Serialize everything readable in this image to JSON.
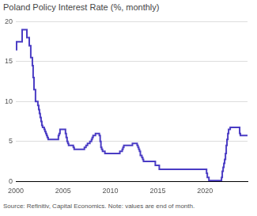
{
  "chart_data": {
    "type": "line",
    "title": "Poland Policy Interest Rate (%, monthly)",
    "source": "Source: Refinitiv, Capital Economics. Note: values are end of month.",
    "x": [
      2000.0,
      2000.08,
      2000.67,
      2001.17,
      2001.42,
      2001.58,
      2001.75,
      2001.83,
      2001.92,
      2002.08,
      2002.33,
      2002.42,
      2002.5,
      2002.58,
      2002.67,
      2002.75,
      2002.83,
      2003.0,
      2003.08,
      2003.17,
      2003.25,
      2003.33,
      2003.42,
      2004.5,
      2004.58,
      2004.67,
      2005.25,
      2005.33,
      2005.42,
      2005.5,
      2005.58,
      2006.08,
      2006.17,
      2007.25,
      2007.42,
      2007.58,
      2007.83,
      2008.0,
      2008.08,
      2008.17,
      2008.42,
      2008.83,
      2008.92,
      2009.0,
      2009.08,
      2009.17,
      2009.42,
      2011.0,
      2011.25,
      2011.33,
      2011.42,
      2012.33,
      2012.83,
      2012.92,
      2013.0,
      2013.08,
      2013.17,
      2013.33,
      2013.42,
      2013.5,
      2014.75,
      2015.17,
      2020.17,
      2020.25,
      2020.42,
      2021.75,
      2021.83,
      2021.92,
      2022.0,
      2022.08,
      2022.17,
      2022.25,
      2022.33,
      2022.42,
      2022.5,
      2022.67,
      2023.67,
      2023.75,
      2024.5
    ],
    "values": [
      16.5,
      17.5,
      19.0,
      18.0,
      17.0,
      15.5,
      14.5,
      13.0,
      11.5,
      10.0,
      9.5,
      9.0,
      8.5,
      8.0,
      7.5,
      7.0,
      6.75,
      6.5,
      6.25,
      6.0,
      5.75,
      5.5,
      5.25,
      5.75,
      6.0,
      6.5,
      6.0,
      5.5,
      5.0,
      4.75,
      4.5,
      4.25,
      4.0,
      4.25,
      4.5,
      4.75,
      5.0,
      5.25,
      5.5,
      5.75,
      6.0,
      5.75,
      5.0,
      4.25,
      4.0,
      3.75,
      3.5,
      3.75,
      4.0,
      4.25,
      4.5,
      4.75,
      4.5,
      4.25,
      4.0,
      3.75,
      3.25,
      3.0,
      2.75,
      2.5,
      2.0,
      1.5,
      1.0,
      0.5,
      0.1,
      0.5,
      1.25,
      1.75,
      2.25,
      2.75,
      3.5,
      4.5,
      5.25,
      6.0,
      6.5,
      6.75,
      6.0,
      5.75,
      5.75
    ],
    "color": "#4a3cc4",
    "line_style": "stepped",
    "xlim": [
      2000,
      2024.5
    ],
    "xticks": [
      2000,
      2005,
      2010,
      2015,
      2020
    ],
    "ylim": [
      0,
      20
    ],
    "yticks": [
      0,
      5,
      10,
      15,
      20
    ],
    "grid": true
  }
}
